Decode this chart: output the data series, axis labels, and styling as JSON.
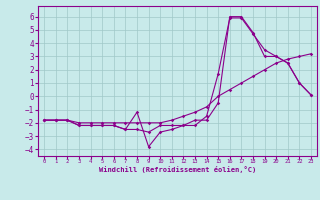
{
  "xlabel": "Windchill (Refroidissement éolien,°C)",
  "x": [
    0,
    1,
    2,
    3,
    4,
    5,
    6,
    7,
    8,
    9,
    10,
    11,
    12,
    13,
    14,
    15,
    16,
    17,
    18,
    19,
    20,
    21,
    22,
    23
  ],
  "line1": [
    -1.8,
    -1.8,
    -1.8,
    -2.2,
    -2.2,
    -2.2,
    -2.2,
    -2.5,
    -2.5,
    -2.7,
    -2.2,
    -2.2,
    -2.2,
    -2.2,
    -1.5,
    1.7,
    5.9,
    5.9,
    4.7,
    3.5,
    3.0,
    2.5,
    1.0,
    0.1
  ],
  "line2": [
    -1.8,
    -1.8,
    -1.8,
    -2.2,
    -2.2,
    -2.2,
    -2.2,
    -2.5,
    -1.2,
    -3.8,
    -2.7,
    -2.5,
    -2.2,
    -1.8,
    -1.8,
    -0.5,
    6.0,
    6.0,
    4.8,
    3.0,
    3.0,
    2.5,
    1.0,
    0.1
  ],
  "line3": [
    -1.8,
    -1.8,
    -1.8,
    -2.0,
    -2.0,
    -2.0,
    -2.0,
    -2.0,
    -2.0,
    -2.0,
    -2.0,
    -1.8,
    -1.5,
    -1.2,
    -0.8,
    0.0,
    0.5,
    1.0,
    1.5,
    2.0,
    2.5,
    2.8,
    3.0,
    3.2
  ],
  "line_color": "#8b008b",
  "bg_color": "#c8eaea",
  "grid_color": "#a0c8c8",
  "ylim": [
    -4.5,
    6.8
  ],
  "xlim": [
    -0.5,
    23.5
  ],
  "yticks": [
    -4,
    -3,
    -2,
    -1,
    0,
    1,
    2,
    3,
    4,
    5,
    6
  ],
  "xticks": [
    0,
    1,
    2,
    3,
    4,
    5,
    6,
    7,
    8,
    9,
    10,
    11,
    12,
    13,
    14,
    15,
    16,
    17,
    18,
    19,
    20,
    21,
    22,
    23
  ]
}
